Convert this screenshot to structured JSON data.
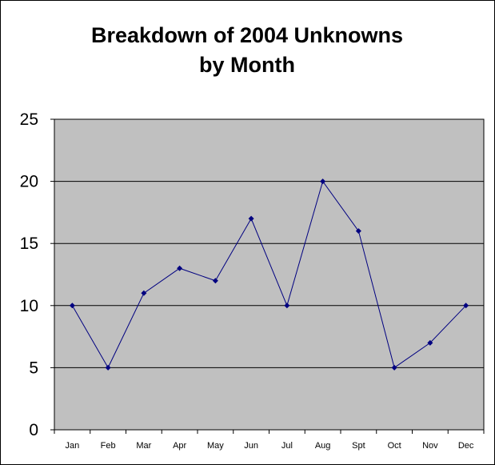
{
  "chart_data": {
    "type": "line",
    "title": "Breakdown of 2004 Unknowns",
    "title_line2": "by Month",
    "xlabel": "",
    "ylabel": "",
    "categories": [
      "Jan",
      "Feb",
      "Mar",
      "Apr",
      "May",
      "Jun",
      "Jul",
      "Aug",
      "Spt",
      "Oct",
      "Nov",
      "Dec"
    ],
    "series": [
      {
        "values": [
          10,
          5,
          11,
          13,
          12,
          17,
          10,
          20,
          16,
          5,
          7,
          10
        ],
        "color": "#000080",
        "marker": "diamond"
      }
    ],
    "ylim": [
      0,
      25
    ],
    "yticks": [
      "0",
      "5",
      "10",
      "15",
      "20",
      "25"
    ],
    "grid": true,
    "legend": "none",
    "plot_background": "#c0c0c0",
    "gridline_color": "#000000"
  }
}
